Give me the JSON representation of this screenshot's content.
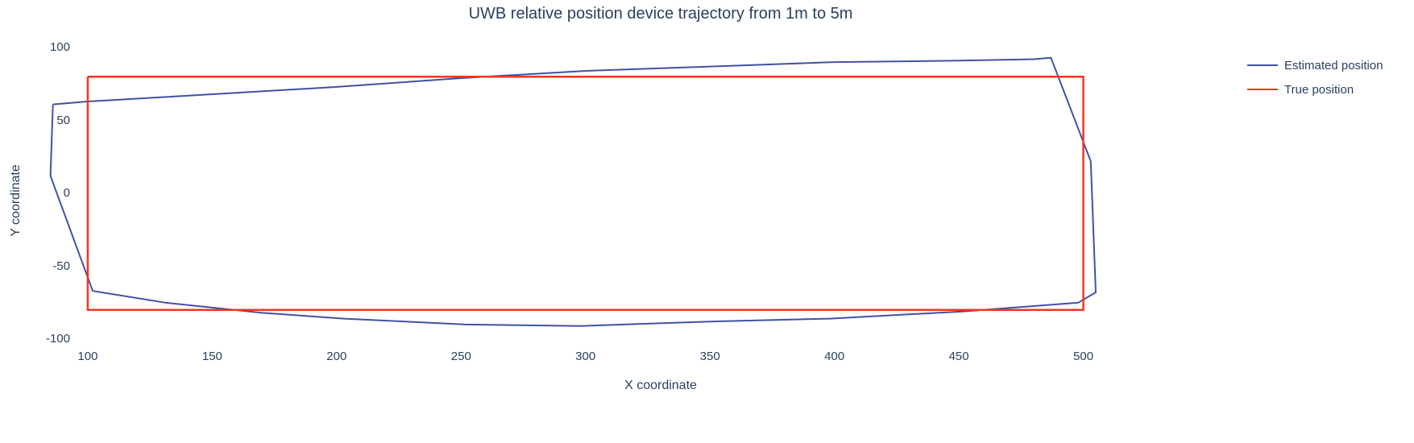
{
  "chart_data": {
    "type": "line",
    "title": "UWB relative position device trajectory from 1m to 5m",
    "xlabel": "X coordinate",
    "ylabel": "Y coordinate",
    "xlim": [
      95.5,
      505
    ],
    "ylim": [
      -105,
      105
    ],
    "xticks": [
      100,
      150,
      200,
      250,
      300,
      350,
      400,
      450,
      500
    ],
    "yticks": [
      -100,
      -50,
      0,
      50,
      100
    ],
    "grid": false,
    "legend_position": "top-right",
    "text_color": "#2a3f5f",
    "series": [
      {
        "id": "estimated",
        "name": "Estimated position",
        "color": "#3f51a5",
        "width": 2,
        "x": [
          86,
          100,
          150,
          200,
          250,
          300,
          350,
          400,
          450,
          480,
          487,
          503,
          505,
          498,
          452,
          398,
          350,
          298,
          252,
          203,
          170,
          131,
          102,
          85,
          86
        ],
        "y": [
          61,
          63,
          68,
          73,
          79,
          84,
          87,
          90,
          91,
          92,
          93,
          22,
          -68,
          -75,
          -81,
          -86,
          -88,
          -91,
          -90,
          -86,
          -82,
          -75,
          -67,
          12,
          61
        ]
      },
      {
        "id": "true",
        "name": "True position",
        "color": "#f5341f",
        "width": 2.5,
        "x": [
          100,
          500,
          500,
          100,
          100
        ],
        "y": [
          80,
          80,
          -80,
          -80,
          80
        ]
      }
    ]
  }
}
